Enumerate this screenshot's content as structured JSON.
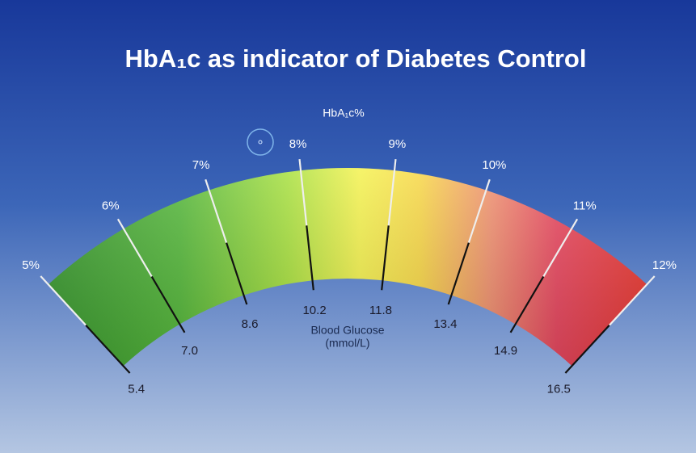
{
  "header": {
    "title": "HbA₁c as indicator of Diabetes Control"
  },
  "gauge": {
    "outer_title": "HbA₁c%",
    "inner_title": [
      "Blood Glucose",
      "(mmol/L)"
    ],
    "ticks": [
      {
        "outer": "5%",
        "inner": "5.4"
      },
      {
        "outer": "6%",
        "inner": "7.0"
      },
      {
        "outer": "7%",
        "inner": "8.6"
      },
      {
        "outer": "8%",
        "inner": "10.2"
      },
      {
        "outer": "9%",
        "inner": "11.8"
      },
      {
        "outer": "10%",
        "inner": "13.4"
      },
      {
        "outer": "11%",
        "inner": "14.9"
      },
      {
        "outer": "12%",
        "inner": "16.5"
      }
    ]
  }
}
